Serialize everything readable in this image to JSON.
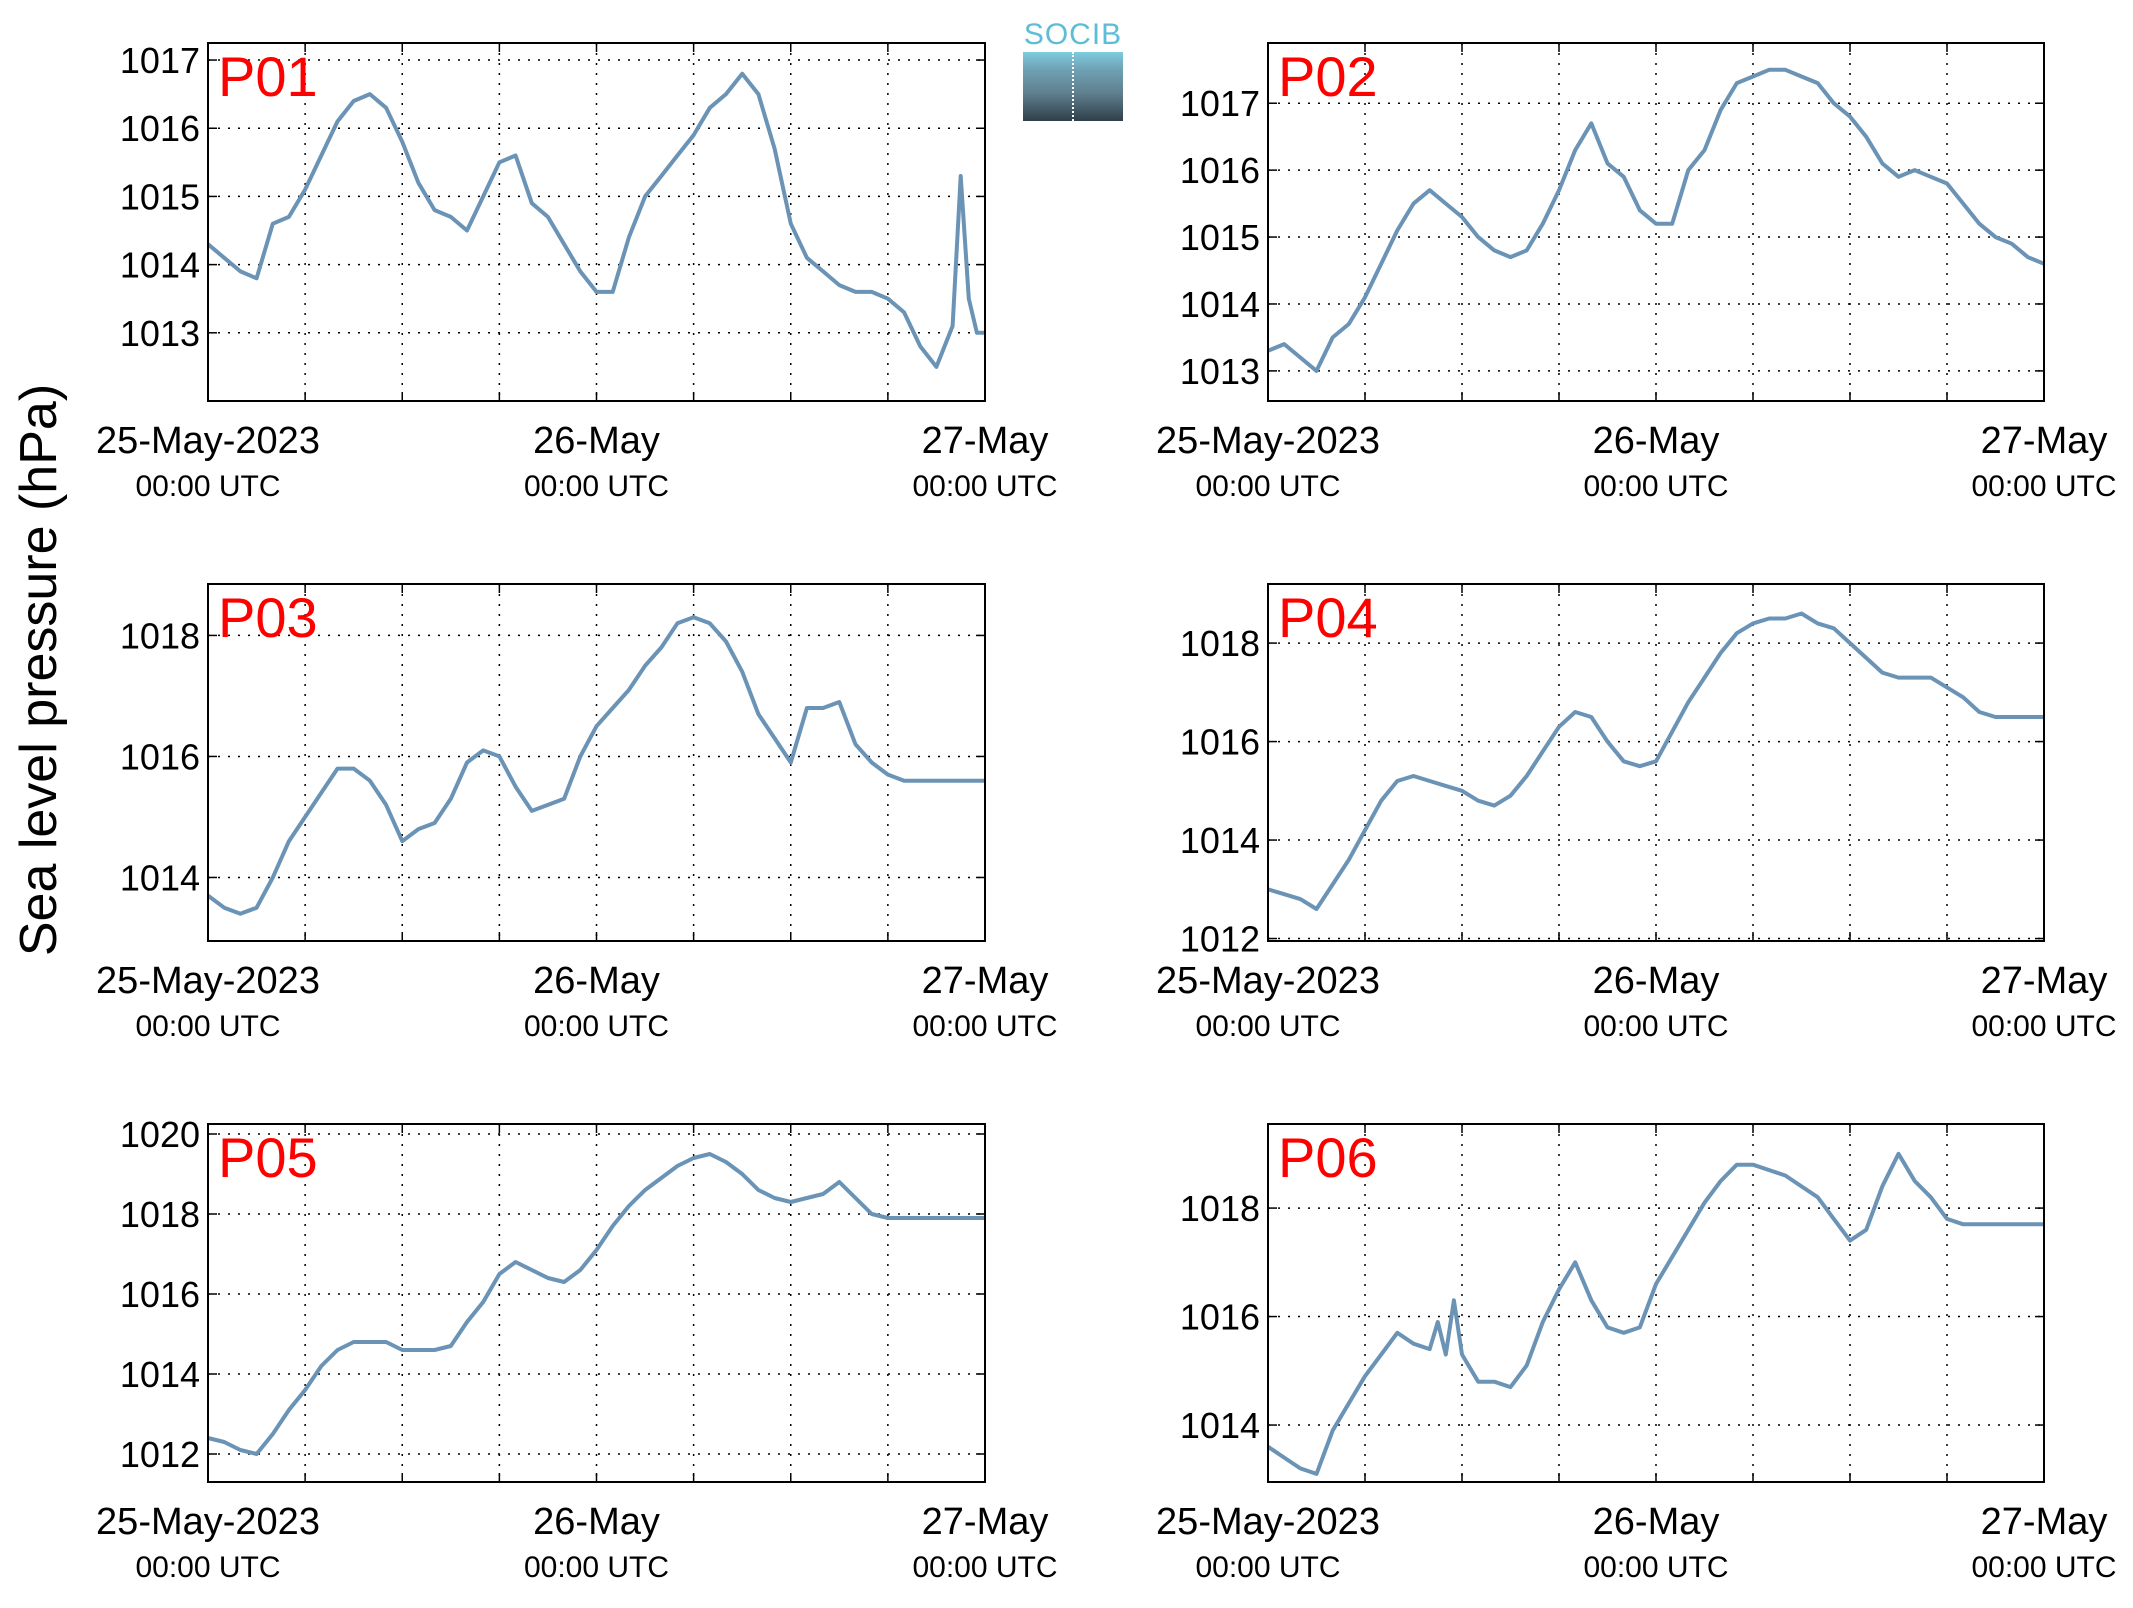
{
  "figure": {
    "ylabel": "Sea level pressure (hPa)",
    "logo_text": "SOCIB",
    "colors": {
      "line": "#6a93b6",
      "panel_label": "#ff0000",
      "axis": "#000000"
    }
  },
  "chart_data": [
    {
      "type": "line",
      "title": "P01",
      "x_ticks": [
        "25-May-2023 00:00 UTC",
        "26-May 00:00 UTC",
        "27-May 00:00 UTC"
      ],
      "xlim_hours": [
        0,
        48
      ],
      "ylim": [
        1012.0,
        1017.25
      ],
      "yticks": [
        1013,
        1014,
        1015,
        1016,
        1017
      ],
      "grid": true,
      "series": [
        {
          "x_hours": [
            0,
            1,
            2,
            3,
            4,
            5,
            6,
            7,
            8,
            9,
            10,
            11,
            12,
            13,
            14,
            15,
            16,
            17,
            18,
            19,
            20,
            21,
            22,
            23,
            24,
            25,
            26,
            27,
            28,
            29,
            30,
            31,
            32,
            33,
            34,
            35,
            36,
            37,
            38,
            39,
            40,
            41,
            42,
            43,
            44,
            45,
            46,
            46.5,
            47,
            47.5,
            48
          ],
          "y": [
            1014.3,
            1014.1,
            1013.9,
            1013.8,
            1014.6,
            1014.7,
            1015.1,
            1015.6,
            1016.1,
            1016.4,
            1016.5,
            1016.3,
            1015.8,
            1015.2,
            1014.8,
            1014.7,
            1014.5,
            1015.0,
            1015.5,
            1015.6,
            1014.9,
            1014.7,
            1014.3,
            1013.9,
            1013.6,
            1013.6,
            1014.4,
            1015.0,
            1015.3,
            1015.6,
            1015.9,
            1016.3,
            1016.5,
            1016.8,
            1016.5,
            1015.7,
            1014.6,
            1014.1,
            1013.9,
            1013.7,
            1013.6,
            1013.6,
            1013.5,
            1013.3,
            1012.8,
            1012.5,
            1013.1,
            1015.3,
            1013.5,
            1013.0,
            1013.0
          ]
        }
      ]
    },
    {
      "type": "line",
      "title": "P02",
      "x_ticks": [
        "25-May-2023 00:00 UTC",
        "26-May 00:00 UTC",
        "27-May 00:00 UTC"
      ],
      "xlim_hours": [
        0,
        48
      ],
      "ylim": [
        1012.55,
        1017.9
      ],
      "yticks": [
        1013,
        1014,
        1015,
        1016,
        1017
      ],
      "grid": true,
      "series": [
        {
          "x_hours": [
            0,
            1,
            2,
            3,
            4,
            5,
            6,
            7,
            8,
            9,
            10,
            11,
            12,
            13,
            14,
            15,
            16,
            17,
            18,
            19,
            20,
            21,
            22,
            23,
            24,
            25,
            26,
            27,
            28,
            29,
            30,
            31,
            32,
            33,
            34,
            35,
            36,
            37,
            38,
            39,
            40,
            41,
            42,
            43,
            44,
            45,
            46,
            47,
            48
          ],
          "y": [
            1013.3,
            1013.4,
            1013.2,
            1013.0,
            1013.5,
            1013.7,
            1014.1,
            1014.6,
            1015.1,
            1015.5,
            1015.7,
            1015.5,
            1015.3,
            1015.0,
            1014.8,
            1014.7,
            1014.8,
            1015.2,
            1015.7,
            1016.3,
            1016.7,
            1016.1,
            1015.9,
            1015.4,
            1015.2,
            1015.2,
            1016.0,
            1016.3,
            1016.9,
            1017.3,
            1017.4,
            1017.5,
            1017.5,
            1017.4,
            1017.3,
            1017.0,
            1016.8,
            1016.5,
            1016.1,
            1015.9,
            1016.0,
            1015.9,
            1015.8,
            1015.5,
            1015.2,
            1015.0,
            1014.9,
            1014.7,
            1014.6
          ]
        }
      ]
    },
    {
      "type": "line",
      "title": "P03",
      "x_ticks": [
        "25-May-2023 00:00 UTC",
        "26-May 00:00 UTC",
        "27-May 00:00 UTC"
      ],
      "xlim_hours": [
        0,
        48
      ],
      "ylim": [
        1012.95,
        1018.85
      ],
      "yticks": [
        1014,
        1016,
        1018
      ],
      "grid": true,
      "series": [
        {
          "x_hours": [
            0,
            1,
            2,
            3,
            4,
            5,
            6,
            7,
            8,
            9,
            10,
            11,
            12,
            13,
            14,
            15,
            16,
            17,
            18,
            19,
            20,
            21,
            22,
            23,
            24,
            25,
            26,
            27,
            28,
            29,
            30,
            31,
            32,
            33,
            34,
            35,
            36,
            37,
            38,
            39,
            40,
            41,
            42,
            43,
            44,
            45,
            46,
            47,
            48
          ],
          "y": [
            1013.7,
            1013.5,
            1013.4,
            1013.5,
            1014.0,
            1014.6,
            1015.0,
            1015.4,
            1015.8,
            1015.8,
            1015.6,
            1015.2,
            1014.6,
            1014.8,
            1014.9,
            1015.3,
            1015.9,
            1016.1,
            1016.0,
            1015.5,
            1015.1,
            1015.2,
            1015.3,
            1016.0,
            1016.5,
            1016.8,
            1017.1,
            1017.5,
            1017.8,
            1018.2,
            1018.3,
            1018.2,
            1017.9,
            1017.4,
            1016.7,
            1016.3,
            1015.9,
            1016.8,
            1016.8,
            1016.9,
            1016.2,
            1015.9,
            1015.7,
            1015.6,
            1015.6,
            1015.6,
            1015.6,
            1015.6,
            1015.6
          ]
        }
      ]
    },
    {
      "type": "line",
      "title": "P04",
      "x_ticks": [
        "25-May-2023 00:00 UTC",
        "26-May 00:00 UTC",
        "27-May 00:00 UTC"
      ],
      "xlim_hours": [
        0,
        48
      ],
      "ylim": [
        1011.95,
        1019.2
      ],
      "yticks": [
        1012,
        1014,
        1016,
        1018
      ],
      "grid": true,
      "series": [
        {
          "x_hours": [
            0,
            1,
            2,
            3,
            4,
            5,
            6,
            7,
            8,
            9,
            10,
            11,
            12,
            13,
            14,
            15,
            16,
            17,
            18,
            19,
            20,
            21,
            22,
            23,
            24,
            25,
            26,
            27,
            28,
            29,
            30,
            31,
            32,
            33,
            34,
            35,
            36,
            37,
            38,
            39,
            40,
            41,
            42,
            43,
            44,
            45,
            46,
            47,
            48
          ],
          "y": [
            1013.0,
            1012.9,
            1012.8,
            1012.6,
            1013.1,
            1013.6,
            1014.2,
            1014.8,
            1015.2,
            1015.3,
            1015.2,
            1015.1,
            1015.0,
            1014.8,
            1014.7,
            1014.9,
            1015.3,
            1015.8,
            1016.3,
            1016.6,
            1016.5,
            1016.0,
            1015.6,
            1015.5,
            1015.6,
            1016.2,
            1016.8,
            1017.3,
            1017.8,
            1018.2,
            1018.4,
            1018.5,
            1018.5,
            1018.6,
            1018.4,
            1018.3,
            1018.0,
            1017.7,
            1017.4,
            1017.3,
            1017.3,
            1017.3,
            1017.1,
            1016.9,
            1016.6,
            1016.5,
            1016.5,
            1016.5,
            1016.5
          ]
        }
      ]
    },
    {
      "type": "line",
      "title": "P05",
      "x_ticks": [
        "25-May-2023 00:00 UTC",
        "26-May 00:00 UTC",
        "27-May 00:00 UTC"
      ],
      "xlim_hours": [
        0,
        48
      ],
      "ylim": [
        1011.3,
        1020.25
      ],
      "yticks": [
        1012,
        1014,
        1016,
        1018,
        1020
      ],
      "grid": true,
      "series": [
        {
          "x_hours": [
            0,
            1,
            2,
            3,
            4,
            5,
            6,
            7,
            8,
            9,
            10,
            11,
            12,
            13,
            14,
            15,
            16,
            17,
            18,
            19,
            20,
            21,
            22,
            23,
            24,
            25,
            26,
            27,
            28,
            29,
            30,
            31,
            32,
            33,
            34,
            35,
            36,
            37,
            38,
            39,
            40,
            41,
            42,
            43,
            44,
            45,
            46,
            47,
            48
          ],
          "y": [
            1012.4,
            1012.3,
            1012.1,
            1012.0,
            1012.5,
            1013.1,
            1013.6,
            1014.2,
            1014.6,
            1014.8,
            1014.8,
            1014.8,
            1014.6,
            1014.6,
            1014.6,
            1014.7,
            1015.3,
            1015.8,
            1016.5,
            1016.8,
            1016.6,
            1016.4,
            1016.3,
            1016.6,
            1017.1,
            1017.7,
            1018.2,
            1018.6,
            1018.9,
            1019.2,
            1019.4,
            1019.5,
            1019.3,
            1019.0,
            1018.6,
            1018.4,
            1018.3,
            1018.4,
            1018.5,
            1018.8,
            1018.4,
            1018.0,
            1017.9,
            1017.9,
            1017.9,
            1017.9,
            1017.9,
            1017.9,
            1017.9
          ]
        }
      ]
    },
    {
      "type": "line",
      "title": "P06",
      "x_ticks": [
        "25-May-2023 00:00 UTC",
        "26-May 00:00 UTC",
        "27-May 00:00 UTC"
      ],
      "xlim_hours": [
        0,
        48
      ],
      "ylim": [
        1012.95,
        1019.55
      ],
      "yticks": [
        1014,
        1016,
        1018
      ],
      "grid": true,
      "series": [
        {
          "x_hours": [
            0,
            1,
            2,
            3,
            4,
            5,
            6,
            7,
            8,
            9,
            10,
            10.5,
            11,
            11.5,
            12,
            13,
            14,
            15,
            16,
            17,
            18,
            19,
            20,
            21,
            22,
            23,
            24,
            25,
            26,
            27,
            28,
            29,
            30,
            31,
            32,
            33,
            34,
            35,
            36,
            37,
            38,
            39,
            40,
            41,
            42,
            43,
            44,
            45,
            46,
            47,
            48
          ],
          "y": [
            1013.6,
            1013.4,
            1013.2,
            1013.1,
            1013.9,
            1014.4,
            1014.9,
            1015.3,
            1015.7,
            1015.5,
            1015.4,
            1015.9,
            1015.3,
            1016.3,
            1015.3,
            1014.8,
            1014.8,
            1014.7,
            1015.1,
            1015.9,
            1016.5,
            1017.0,
            1016.3,
            1015.8,
            1015.7,
            1015.8,
            1016.6,
            1017.1,
            1017.6,
            1018.1,
            1018.5,
            1018.8,
            1018.8,
            1018.7,
            1018.6,
            1018.4,
            1018.2,
            1017.8,
            1017.4,
            1017.6,
            1018.4,
            1019.0,
            1018.5,
            1018.2,
            1017.8,
            1017.7,
            1017.7,
            1017.7,
            1017.7,
            1017.7,
            1017.7
          ]
        }
      ]
    }
  ]
}
